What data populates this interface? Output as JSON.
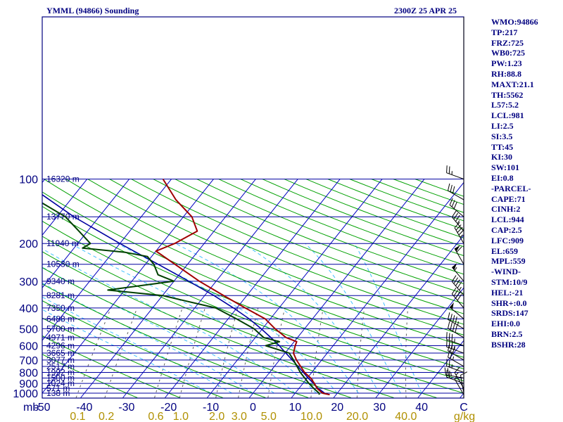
{
  "header": {
    "station": "YMML (94866) Sounding",
    "time": "2300Z 25 APR 25"
  },
  "indices": [
    "WMO:94866",
    "TP:217",
    "FRZ:725",
    "WB0:725",
    "PW:1.23",
    "RH:88.8",
    "MAXT:21.1",
    "TH:5562",
    "L57:5.2",
    "LCL:981",
    "LI:2.5",
    "SI:3.5",
    "TT:45",
    "KI:30",
    "SW:101",
    "EI:0.8",
    "-PARCEL-",
    "CAPE:71",
    "CINH:2",
    "LCL:944",
    "CAP:2.5",
    "LFC:909",
    "EL:659",
    "MPL:559",
    "-WIND-",
    "STM:10/9",
    "HEL:-21",
    "SHR+:0.0",
    "SRDS:147",
    "EHI:0.0",
    "BRN:2.5",
    "BSHR:28"
  ],
  "colors": {
    "frame": "#000080",
    "isobar": "#0000a0",
    "isotherm": "#0000c0",
    "dry_adiabat": "#00a000",
    "moist_adiabat": "#40c0ff",
    "mixing_ratio": "#606060",
    "temperature": "#a00000",
    "dewpoint": "#004000",
    "parcel": "#0000a0",
    "tick_labels_bottom": "#b09000",
    "axis_labels": "#000080"
  },
  "chart_data": {
    "type": "line",
    "title": "YMML (94866) Sounding",
    "x_unit_label": "C",
    "mixing_ratio_unit_label": "g/kg",
    "pressure_unit_label": "mb",
    "pressure_levels": [
      100,
      200,
      300,
      400,
      500,
      600,
      700,
      800,
      900,
      1000
    ],
    "height_labels": [
      {
        "p": 100,
        "label": "16320 m"
      },
      {
        "p": 150,
        "label": "13770 m"
      },
      {
        "p": 200,
        "label": "11940 m"
      },
      {
        "p": 250,
        "label": "10530 m"
      },
      {
        "p": 300,
        "label": "9340 m"
      },
      {
        "p": 350,
        "label": "8281 m"
      },
      {
        "p": 400,
        "label": "7350 m"
      },
      {
        "p": 450,
        "label": "6488 m"
      },
      {
        "p": 500,
        "label": "5700 m"
      },
      {
        "p": 550,
        "label": "4971 m"
      },
      {
        "p": 600,
        "label": "4296 m"
      },
      {
        "p": 650,
        "label": "3665 m"
      },
      {
        "p": 700,
        "label": "3077 m"
      },
      {
        "p": 750,
        "label": "2517 m"
      },
      {
        "p": 800,
        "label": "1992 m"
      },
      {
        "p": 850,
        "label": "1500 m"
      },
      {
        "p": 900,
        "label": "1024 m"
      },
      {
        "p": 950,
        "label": "571 m"
      },
      {
        "p": 1000,
        "label": "138 m"
      }
    ],
    "temperature_ticks": [
      -50,
      -40,
      -30,
      -20,
      -10,
      0,
      10,
      20,
      30,
      40
    ],
    "mixing_ratio_ticks": [
      0.1,
      0.2,
      0.6,
      1.0,
      2.0,
      3.0,
      5.0,
      10.0,
      20.0,
      40.0
    ],
    "temperature_profile": [
      {
        "p": 1017,
        "t": 18.5
      },
      {
        "p": 1000,
        "t": 16.5
      },
      {
        "p": 950,
        "t": 14.3
      },
      {
        "p": 900,
        "t": 12.7
      },
      {
        "p": 850,
        "t": 10.8
      },
      {
        "p": 800,
        "t": 8.3
      },
      {
        "p": 700,
        "t": 4.0
      },
      {
        "p": 650,
        "t": 2.0
      },
      {
        "p": 600,
        "t": 1.0
      },
      {
        "p": 575,
        "t": 0.6
      },
      {
        "p": 550,
        "t": -2.7
      },
      {
        "p": 500,
        "t": -7.0
      },
      {
        "p": 450,
        "t": -11.2
      },
      {
        "p": 400,
        "t": -18.0
      },
      {
        "p": 350,
        "t": -25.5
      },
      {
        "p": 300,
        "t": -34.0
      },
      {
        "p": 250,
        "t": -43.0
      },
      {
        "p": 217,
        "t": -50.0
      },
      {
        "p": 200,
        "t": -47.0
      },
      {
        "p": 175,
        "t": -44.0
      },
      {
        "p": 150,
        "t": -48.0
      },
      {
        "p": 125,
        "t": -55.0
      },
      {
        "p": 100,
        "t": -62.0
      }
    ],
    "dewpoint_profile": [
      {
        "p": 1017,
        "t": 16.0
      },
      {
        "p": 1000,
        "t": 15.7
      },
      {
        "p": 950,
        "t": 13.5
      },
      {
        "p": 900,
        "t": 11.4
      },
      {
        "p": 850,
        "t": 9.4
      },
      {
        "p": 800,
        "t": 7.3
      },
      {
        "p": 700,
        "t": 3.3
      },
      {
        "p": 650,
        "t": 1.0
      },
      {
        "p": 600,
        "t": -6.0
      },
      {
        "p": 575,
        "t": -3.5
      },
      {
        "p": 550,
        "t": -8.0
      },
      {
        "p": 500,
        "t": -12.0
      },
      {
        "p": 450,
        "t": -18.0
      },
      {
        "p": 400,
        "t": -25.0
      },
      {
        "p": 350,
        "t": -40.0
      },
      {
        "p": 330,
        "t": -54.0
      },
      {
        "p": 300,
        "t": -40.0
      },
      {
        "p": 280,
        "t": -45.0
      },
      {
        "p": 250,
        "t": -48.0
      },
      {
        "p": 230,
        "t": -51.0
      },
      {
        "p": 220,
        "t": -57.0
      },
      {
        "p": 210,
        "t": -68.0
      },
      {
        "p": 200,
        "t": -67.0
      },
      {
        "p": 180,
        "t": -71.0
      },
      {
        "p": 150,
        "t": -78.0
      },
      {
        "p": 125,
        "t": -88.0
      },
      {
        "p": 100,
        "t": -98.0
      }
    ],
    "parcel_path": [
      {
        "p": 1000,
        "t": 17.0
      },
      {
        "p": 944,
        "t": 14.3
      },
      {
        "p": 900,
        "t": 12.5
      },
      {
        "p": 850,
        "t": 10.2
      },
      {
        "p": 800,
        "t": 8.0
      },
      {
        "p": 750,
        "t": 5.6
      },
      {
        "p": 700,
        "t": 3.0
      },
      {
        "p": 650,
        "t": 0.2
      },
      {
        "p": 600,
        "t": -2.8
      },
      {
        "p": 550,
        "t": -6.3
      },
      {
        "p": 500,
        "t": -10.3
      },
      {
        "p": 450,
        "t": -15.0
      },
      {
        "p": 400,
        "t": -20.8
      },
      {
        "p": 350,
        "t": -27.8
      },
      {
        "p": 300,
        "t": -36.5
      },
      {
        "p": 250,
        "t": -47.0
      },
      {
        "p": 200,
        "t": -60.0
      },
      {
        "p": 150,
        "t": -76.0
      },
      {
        "p": 100,
        "t": -96.0
      }
    ],
    "wind_barbs": [
      {
        "p": 1017,
        "dir": 330,
        "spd": 5
      },
      {
        "p": 1000,
        "dir": 350,
        "spd": 10
      },
      {
        "p": 950,
        "dir": 330,
        "spd": 15
      },
      {
        "p": 900,
        "dir": 290,
        "spd": 20
      },
      {
        "p": 850,
        "dir": 280,
        "spd": 25
      },
      {
        "p": 800,
        "dir": 290,
        "spd": 25
      },
      {
        "p": 750,
        "dir": 300,
        "spd": 25
      },
      {
        "p": 700,
        "dir": 300,
        "spd": 30
      },
      {
        "p": 650,
        "dir": 290,
        "spd": 35
      },
      {
        "p": 600,
        "dir": 290,
        "spd": 35
      },
      {
        "p": 550,
        "dir": 300,
        "spd": 40
      },
      {
        "p": 500,
        "dir": 300,
        "spd": 45
      },
      {
        "p": 450,
        "dir": 310,
        "spd": 50
      },
      {
        "p": 400,
        "dir": 320,
        "spd": 40
      },
      {
        "p": 350,
        "dir": 320,
        "spd": 45
      },
      {
        "p": 300,
        "dir": 320,
        "spd": 55
      },
      {
        "p": 250,
        "dir": 330,
        "spd": 60
      },
      {
        "p": 200,
        "dir": 330,
        "spd": 45
      },
      {
        "p": 175,
        "dir": 320,
        "spd": 35
      },
      {
        "p": 150,
        "dir": 310,
        "spd": 30
      },
      {
        "p": 125,
        "dir": 300,
        "spd": 30
      },
      {
        "p": 100,
        "dir": 290,
        "spd": 25
      }
    ],
    "xlim": [
      -50,
      50
    ],
    "ylim": [
      1050,
      100
    ],
    "y_scale": "log",
    "grid": true
  }
}
